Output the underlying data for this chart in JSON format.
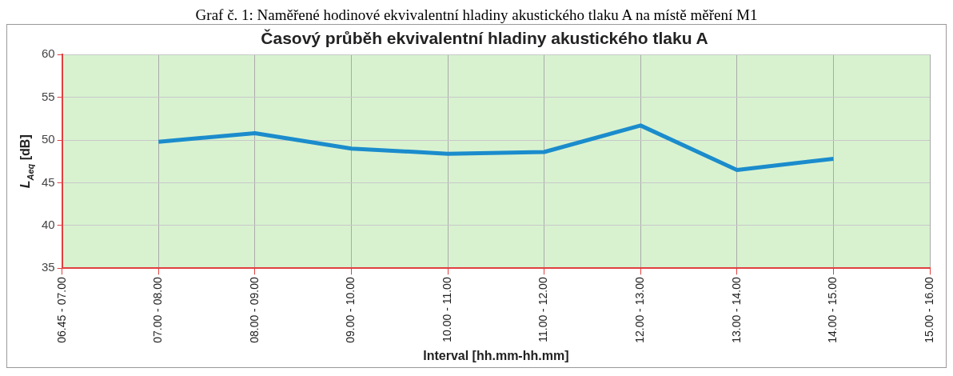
{
  "chart_data": {
    "type": "line",
    "title": "Časový průběh ekvivalentní hladiny akustického tlaku A",
    "xlabel": "Interval [hh.mm-hh.mm]",
    "ylabel": "L$_{Aeq}$ [dB]",
    "annotations": [
      "Graf č. 1: Naměřené hodinové ekvivalentní hladiny akustického tlaku A na místě měření M1"
    ],
    "categories": [
      "06.45 - 07.00",
      "07.00 - 08.00",
      "08.00 - 09.00",
      "09.00 - 10.00",
      "10.00 - 11.00",
      "11.00 - 12.00",
      "12.00 - 13.00",
      "13.00 - 14.00",
      "14.00 - 15.00",
      "15.00 - 16.00"
    ],
    "series": [
      {
        "color": "#1b8ccc",
        "values": [
          null,
          49.8,
          50.8,
          49.0,
          48.4,
          48.6,
          51.7,
          46.5,
          47.8,
          null
        ]
      }
    ],
    "ylim": [
      35,
      60
    ],
    "yticks": [
      35,
      40,
      45,
      50,
      55,
      60
    ],
    "grid": true,
    "marker": "none",
    "line_style": "solid"
  }
}
